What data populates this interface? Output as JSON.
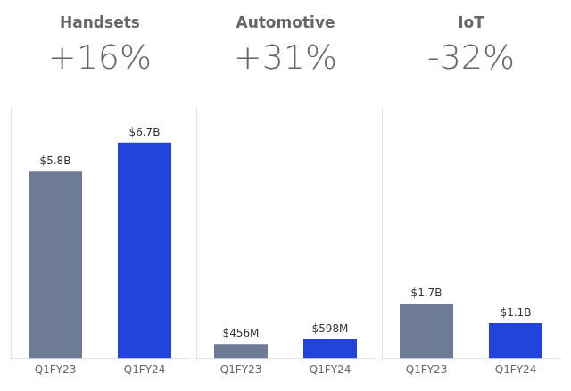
{
  "chart_data": [
    {
      "type": "bar",
      "title": "Handsets",
      "subtitle": "+16%",
      "categories": [
        "Q1FY23",
        "Q1FY24"
      ],
      "values": [
        5.8,
        6.7
      ],
      "value_labels": [
        "$5.8B",
        "$6.7B"
      ],
      "colors": [
        "#6e7b96",
        "#2244dd"
      ],
      "ylim": [
        0,
        7.8
      ],
      "grid": false,
      "data_labels": true,
      "tick_labels": "x"
    },
    {
      "type": "bar",
      "title": "Automotive",
      "subtitle": "+31%",
      "categories": [
        "Q1FY23",
        "Q1FY24"
      ],
      "values": [
        0.456,
        0.598
      ],
      "value_labels": [
        "$456M",
        "$598M"
      ],
      "colors": [
        "#6e7b96",
        "#2244dd"
      ],
      "ylim": [
        0,
        7.8
      ],
      "grid": false,
      "data_labels": true,
      "tick_labels": "x"
    },
    {
      "type": "bar",
      "title": "IoT",
      "subtitle": "-32%",
      "categories": [
        "Q1FY23",
        "Q1FY24"
      ],
      "values": [
        1.7,
        1.1
      ],
      "value_labels": [
        "$1.7B",
        "$1.1B"
      ],
      "colors": [
        "#6e7b96",
        "#2244dd"
      ],
      "ylim": [
        0,
        7.8
      ],
      "grid": false,
      "data_labels": true,
      "tick_labels": "x"
    }
  ]
}
